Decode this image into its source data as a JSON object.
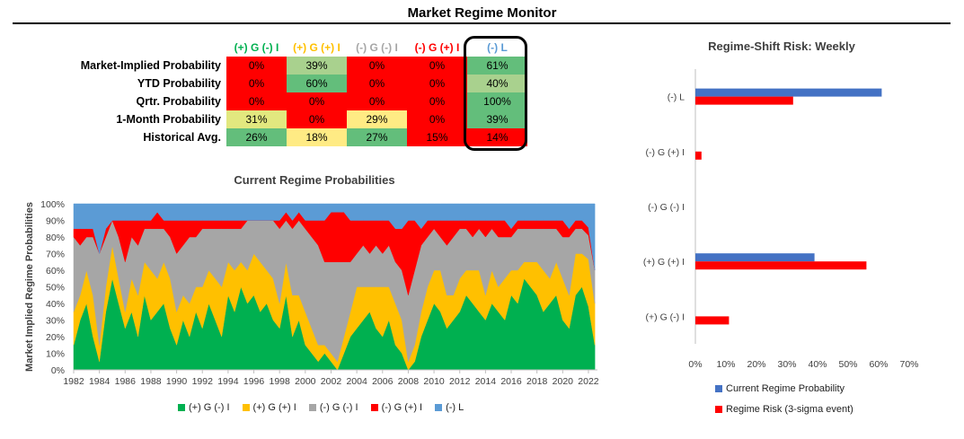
{
  "title": "Market Regime Monitor",
  "colors": {
    "green_dark": "#63BE7B",
    "green_light": "#A9D18E",
    "yellow": "#FFEB84",
    "red": "#FF0000",
    "pale_yellow": "#E2E87F",
    "s1": "#00B050",
    "s2": "#FFC000",
    "s3": "#A6A6A6",
    "s4": "#FF0000",
    "s5": "#5B9BD5",
    "bar_blue": "#4472C4",
    "bar_red": "#FF0000"
  },
  "table": {
    "headers": [
      {
        "label": "(+) G (-) I",
        "color": "#00B050"
      },
      {
        "label": "(+) G (+) I",
        "color": "#FFC000"
      },
      {
        "label": "(-) G (-) I",
        "color": "#A6A6A6"
      },
      {
        "label": "(-) G (+) I",
        "color": "#FF0000"
      },
      {
        "label": "(-) L",
        "color": "#5B9BD5"
      }
    ],
    "rows": [
      {
        "label": "Market-Implied Probability",
        "cells": [
          {
            "v": "0%",
            "bg": "#FF0000"
          },
          {
            "v": "39%",
            "bg": "#A9D18E"
          },
          {
            "v": "0%",
            "bg": "#FF0000"
          },
          {
            "v": "0%",
            "bg": "#FF0000"
          },
          {
            "v": "61%",
            "bg": "#63BE7B"
          }
        ]
      },
      {
        "label": "YTD Probability",
        "cells": [
          {
            "v": "0%",
            "bg": "#FF0000"
          },
          {
            "v": "60%",
            "bg": "#63BE7B"
          },
          {
            "v": "0%",
            "bg": "#FF0000"
          },
          {
            "v": "0%",
            "bg": "#FF0000"
          },
          {
            "v": "40%",
            "bg": "#A9D18E"
          }
        ]
      },
      {
        "label": "Qrtr. Probability",
        "cells": [
          {
            "v": "0%",
            "bg": "#FF0000"
          },
          {
            "v": "0%",
            "bg": "#FF0000"
          },
          {
            "v": "0%",
            "bg": "#FF0000"
          },
          {
            "v": "0%",
            "bg": "#FF0000"
          },
          {
            "v": "100%",
            "bg": "#63BE7B"
          }
        ]
      },
      {
        "label": "1-Month Probability",
        "cells": [
          {
            "v": "31%",
            "bg": "#E2E87F"
          },
          {
            "v": "0%",
            "bg": "#FF0000"
          },
          {
            "v": "29%",
            "bg": "#FFEB84"
          },
          {
            "v": "0%",
            "bg": "#FF0000"
          },
          {
            "v": "39%",
            "bg": "#63BE7B"
          }
        ]
      },
      {
        "label": "Historical Avg.",
        "cells": [
          {
            "v": "26%",
            "bg": "#63BE7B"
          },
          {
            "v": "18%",
            "bg": "#FFEB84"
          },
          {
            "v": "27%",
            "bg": "#63BE7B"
          },
          {
            "v": "15%",
            "bg": "#FF0000"
          },
          {
            "v": "14%",
            "bg": "#FF0000"
          }
        ]
      }
    ]
  },
  "chart_data": [
    {
      "type": "area",
      "title": "Current Regime Probabilities",
      "ylabel": "Market Implied Regime Probabilities",
      "xlabel": "",
      "stacked": true,
      "ylim": [
        0,
        100
      ],
      "y_ticks": [
        "0%",
        "10%",
        "20%",
        "30%",
        "40%",
        "50%",
        "60%",
        "70%",
        "80%",
        "90%",
        "100%"
      ],
      "x_ticks": [
        "1982",
        "1984",
        "1986",
        "1988",
        "1990",
        "1992",
        "1994",
        "1996",
        "1998",
        "2000",
        "2002",
        "2004",
        "2006",
        "2008",
        "2010",
        "2012",
        "2014",
        "2016",
        "2018",
        "2020",
        "2022"
      ],
      "x": [
        1982.0,
        1982.5,
        1983,
        1983.5,
        1984,
        1984.5,
        1985,
        1985.5,
        1986,
        1986.5,
        1987,
        1987.5,
        1988,
        1988.5,
        1989,
        1989.5,
        1990,
        1990.5,
        1991,
        1991.5,
        1992,
        1992.5,
        1993,
        1993.5,
        1994,
        1994.5,
        1995,
        1995.5,
        1996,
        1996.5,
        1997,
        1997.5,
        1998,
        1998.5,
        1999,
        1999.5,
        2000,
        2000.5,
        2001,
        2001.5,
        2002,
        2002.5,
        2003,
        2003.5,
        2004,
        2004.5,
        2005,
        2005.5,
        2006,
        2006.5,
        2007,
        2007.5,
        2008,
        2008.5,
        2009,
        2009.5,
        2010,
        2010.5,
        2011,
        2011.5,
        2012,
        2012.5,
        2013,
        2013.5,
        2014,
        2014.5,
        2015,
        2015.5,
        2016,
        2016.5,
        2017,
        2017.5,
        2018,
        2018.5,
        2019,
        2019.5,
        2020,
        2020.5,
        2021,
        2021.5,
        2022,
        2022.5
      ],
      "series": [
        {
          "name": "(+) G (-) I",
          "color": "#00B050",
          "values": [
            15,
            30,
            40,
            20,
            5,
            35,
            55,
            40,
            25,
            35,
            20,
            45,
            30,
            35,
            40,
            25,
            15,
            30,
            20,
            35,
            25,
            40,
            30,
            20,
            45,
            35,
            50,
            40,
            45,
            35,
            40,
            30,
            25,
            45,
            20,
            30,
            15,
            10,
            5,
            10,
            5,
            0,
            10,
            20,
            25,
            30,
            35,
            25,
            20,
            30,
            15,
            10,
            0,
            5,
            20,
            30,
            40,
            35,
            25,
            30,
            35,
            45,
            40,
            35,
            30,
            40,
            35,
            30,
            45,
            40,
            55,
            50,
            45,
            35,
            40,
            45,
            30,
            25,
            45,
            50,
            40,
            15
          ]
        },
        {
          "name": "(+) G (+) I",
          "color": "#FFC000",
          "values": [
            20,
            15,
            20,
            25,
            10,
            15,
            20,
            15,
            10,
            20,
            25,
            20,
            30,
            20,
            25,
            30,
            20,
            15,
            20,
            15,
            25,
            20,
            25,
            30,
            20,
            25,
            15,
            20,
            25,
            30,
            20,
            25,
            15,
            20,
            25,
            15,
            20,
            15,
            10,
            5,
            5,
            5,
            10,
            15,
            25,
            20,
            15,
            25,
            30,
            20,
            25,
            20,
            5,
            10,
            15,
            20,
            20,
            25,
            20,
            15,
            20,
            15,
            20,
            25,
            15,
            20,
            15,
            25,
            15,
            20,
            10,
            15,
            20,
            25,
            15,
            20,
            25,
            20,
            25,
            20,
            30,
            25
          ]
        },
        {
          "name": "(-) G (-) I",
          "color": "#A6A6A6",
          "values": [
            45,
            30,
            20,
            35,
            55,
            30,
            15,
            25,
            30,
            25,
            30,
            20,
            25,
            30,
            20,
            25,
            35,
            30,
            40,
            30,
            35,
            25,
            30,
            35,
            20,
            25,
            20,
            30,
            20,
            25,
            30,
            35,
            45,
            25,
            40,
            45,
            50,
            55,
            60,
            50,
            55,
            60,
            45,
            30,
            20,
            25,
            20,
            25,
            20,
            25,
            25,
            30,
            40,
            45,
            40,
            30,
            25,
            20,
            30,
            35,
            30,
            25,
            20,
            25,
            35,
            25,
            30,
            25,
            20,
            25,
            20,
            20,
            20,
            25,
            30,
            20,
            25,
            35,
            15,
            15,
            15,
            20
          ]
        },
        {
          "name": "(-) G (+) I",
          "color": "#FF0000",
          "values": [
            5,
            10,
            5,
            5,
            0,
            5,
            0,
            10,
            25,
            10,
            15,
            5,
            5,
            10,
            5,
            10,
            20,
            15,
            10,
            10,
            5,
            5,
            5,
            5,
            5,
            5,
            5,
            0,
            0,
            0,
            0,
            0,
            5,
            5,
            5,
            5,
            5,
            10,
            15,
            25,
            30,
            30,
            30,
            25,
            20,
            15,
            20,
            15,
            20,
            15,
            20,
            25,
            45,
            30,
            10,
            10,
            5,
            10,
            15,
            10,
            5,
            5,
            10,
            5,
            10,
            5,
            10,
            10,
            5,
            5,
            5,
            5,
            5,
            5,
            5,
            5,
            10,
            5,
            5,
            5,
            5,
            0
          ]
        },
        {
          "name": "(-) L",
          "color": "#5B9BD5",
          "values": [
            15,
            15,
            15,
            15,
            30,
            15,
            10,
            10,
            10,
            10,
            10,
            10,
            10,
            5,
            10,
            10,
            10,
            10,
            10,
            10,
            10,
            10,
            10,
            10,
            10,
            10,
            10,
            10,
            10,
            10,
            10,
            10,
            10,
            5,
            10,
            5,
            10,
            10,
            10,
            10,
            5,
            5,
            5,
            10,
            10,
            10,
            10,
            10,
            10,
            10,
            15,
            15,
            10,
            10,
            15,
            10,
            10,
            10,
            10,
            10,
            10,
            10,
            10,
            10,
            10,
            10,
            10,
            10,
            15,
            10,
            10,
            10,
            10,
            10,
            10,
            10,
            10,
            15,
            10,
            10,
            15,
            40
          ]
        }
      ]
    },
    {
      "type": "bar",
      "orientation": "horizontal",
      "title": "Regime-Shift Risk: Weekly",
      "categories": [
        "(-) L",
        "(-) G (+) I",
        "(-) G (-) I",
        "(+) G (+) I",
        "(+) G (-) I"
      ],
      "x_ticks": [
        "0%",
        "10%",
        "20%",
        "30%",
        "40%",
        "50%",
        "60%",
        "70%"
      ],
      "xlim": [
        0,
        70
      ],
      "series": [
        {
          "name": "Current Regime Probability",
          "color": "#4472C4",
          "values": [
            61,
            0,
            0,
            39,
            0
          ]
        },
        {
          "name": "Regime Risk (3-sigma event)",
          "color": "#FF0000",
          "values": [
            32,
            2,
            0,
            56,
            11
          ]
        }
      ]
    }
  ]
}
